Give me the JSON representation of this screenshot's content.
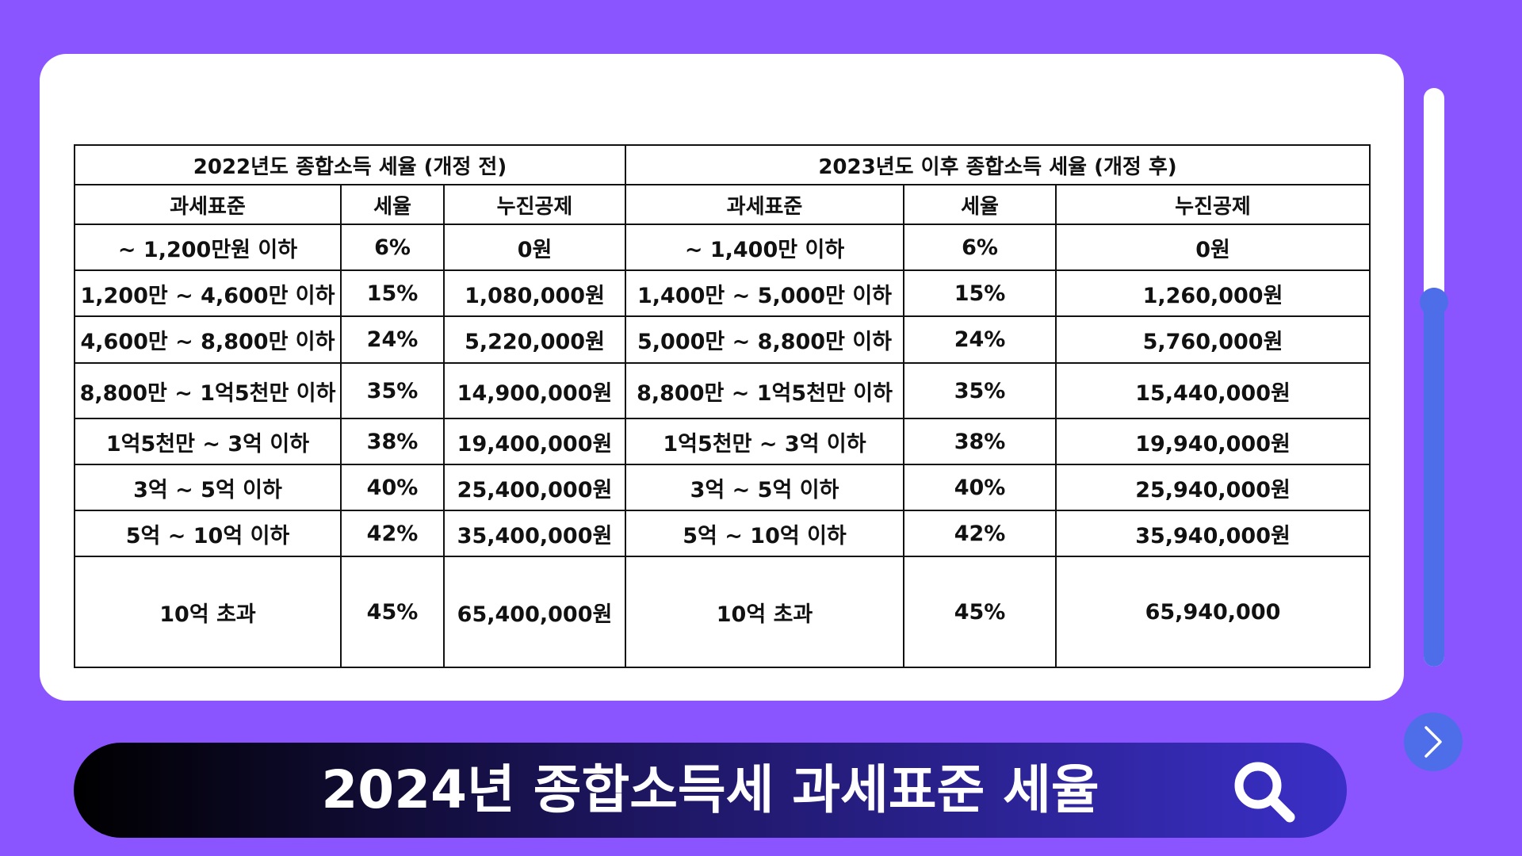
{
  "table": {
    "before_title": "2022년도 종합소득 세율 (개정 전)",
    "after_title": "2023년도 이후 종합소득 세율 (개정 후)",
    "headers": [
      "과세표준",
      "세율",
      "누진공제",
      "과세표준",
      "세율",
      "누진공제"
    ],
    "rows": [
      [
        "~ 1,200만원 이하",
        "6%",
        "0원",
        "~ 1,400만 이하",
        "6%",
        "0원"
      ],
      [
        "1,200만  ~ 4,600만 이하",
        "15%",
        "1,080,000원",
        "1,400만 ~ 5,000만 이하",
        "15%",
        "1,260,000원"
      ],
      [
        "4,600만 ~ 8,800만 이하",
        "24%",
        "5,220,000원",
        "5,000만 ~ 8,800만 이하",
        "24%",
        "5,760,000원"
      ],
      [
        "8,800만  ~ 1억5천만 이하",
        "35%",
        "14,900,000원",
        "8,800만  ~ 1억5천만 이하",
        "35%",
        "15,440,000원"
      ],
      [
        "1억5천만 ~ 3억 이하",
        "38%",
        "19,400,000원",
        "1억5천만 ~ 3억 이하",
        "38%",
        "19,940,000원"
      ],
      [
        "3억  ~ 5억 이하",
        "40%",
        "25,400,000원",
        "3억  ~ 5억 이하",
        "40%",
        "25,940,000원"
      ],
      [
        "5억  ~ 10억 이하",
        "42%",
        "35,400,000원",
        "5억  ~ 10억 이하",
        "42%",
        "35,940,000원"
      ],
      [
        "10억 초과",
        "45%",
        "65,400,000원",
        "10억 초과",
        "45%",
        "65,940,000"
      ]
    ]
  },
  "search_bar": {
    "title": "2024년 종합소득세 과세표준 세율"
  },
  "scrollbar": {
    "position_fraction": 0.34
  },
  "icons": {
    "search": "search-icon",
    "next": "chevron-right-icon"
  },
  "colors": {
    "background": "#8a55ff",
    "accent": "#4d6ee8",
    "bar_start": "#000000",
    "bar_end": "#3a2fc7"
  }
}
